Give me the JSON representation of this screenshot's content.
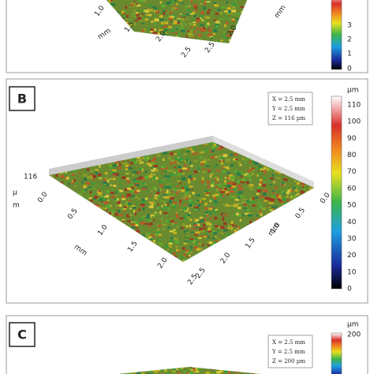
{
  "panels": [
    {
      "axis_left": {
        "ticks": [
          "1.0",
          "1.5",
          "2.0",
          "2.5"
        ],
        "unit": "mm"
      },
      "axis_right": {
        "ticks": [
          "2.0",
          "2.5"
        ],
        "unit": "mm"
      },
      "colorbar": {
        "ticks": [
          "3",
          "2",
          "1",
          "0"
        ]
      }
    },
    {
      "label": "B",
      "info": [
        "X = 2.5 mm",
        "Y = 2.5 mm",
        "Z = 116 µm"
      ],
      "z_max": "116",
      "z_unit": [
        "µ",
        "m"
      ],
      "axis_left": {
        "ticks": [
          "0.0",
          "0.5",
          "1.0",
          "1.5",
          "2.0",
          "2.5"
        ],
        "unit": "mm"
      },
      "axis_right": {
        "ticks": [
          "0.0",
          "0.5",
          "1.0",
          "1.5",
          "2.0",
          "2.5"
        ],
        "unit": "mm"
      },
      "colorbar": {
        "unit": "µm",
        "ticks": [
          "110",
          "100",
          "90",
          "80",
          "70",
          "60",
          "50",
          "40",
          "30",
          "20",
          "10",
          "0"
        ]
      }
    },
    {
      "label": "C",
      "info": [
        "X = 2.5 mm",
        "Y = 2.5 mm",
        "Z = 200 µm"
      ],
      "colorbar": {
        "unit": "µm",
        "ticks": [
          "200"
        ]
      }
    }
  ]
}
